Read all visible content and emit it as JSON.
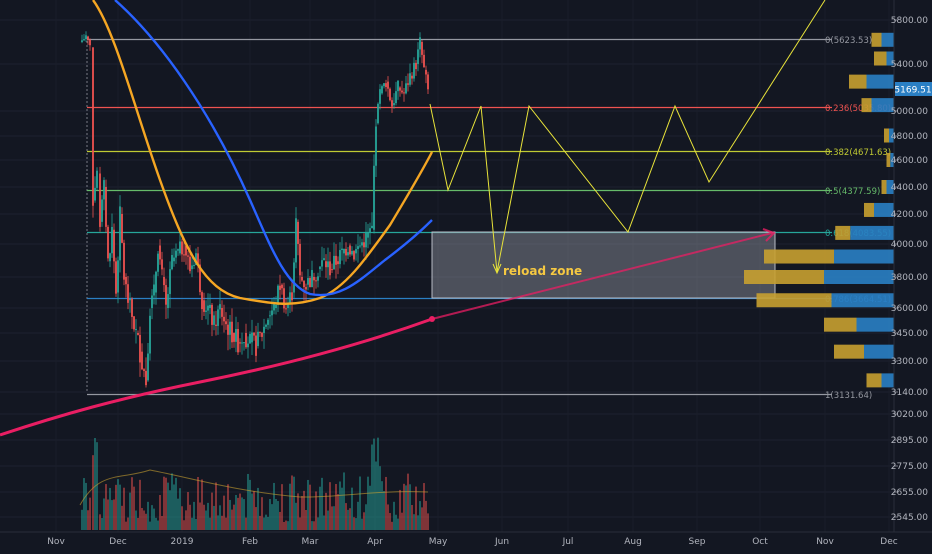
{
  "colors": {
    "background": "#131722",
    "up": "#26a69a",
    "down": "#ef5350",
    "orange_ma": "#f5a623",
    "blue_ma": "#2962ff",
    "pink_ma": "#e91e63",
    "projection": "#e8e33a",
    "vp_up": "#2a7fc4",
    "vp_down": "#c8a030",
    "price_tag": "#2a7fc4"
  },
  "chart_data": {
    "type": "candlestick",
    "symbol_price": "5169.51",
    "y_ticks": [
      "5800.00",
      "5400.00",
      "5000.00",
      "4800.00",
      "4600.00",
      "4400.00",
      "4200.00",
      "4000.00",
      "3800.00",
      "3600.00",
      "3450.00",
      "3300.00",
      "3140.00",
      "3020.00",
      "2895.00",
      "2775.00",
      "2655.00",
      "2545.00"
    ],
    "x_ticks": [
      "Nov",
      "Dec",
      "2019",
      "Feb",
      "Mar",
      "Apr",
      "May",
      "Jun",
      "Jul",
      "Aug",
      "Sep",
      "Oct",
      "Nov",
      "Dec"
    ],
    "fib_levels": [
      {
        "ratio": 0,
        "price": 5623.53,
        "label": "0(5623.53)",
        "color": "#9598a1"
      },
      {
        "ratio": 0.236,
        "price": 5035.8,
        "label": "0.236(5035.80)",
        "color": "#ef5350"
      },
      {
        "ratio": 0.382,
        "price": 4671.63,
        "label": "0.382(4671.63)",
        "color": "#c0ca33"
      },
      {
        "ratio": 0.5,
        "price": 4377.59,
        "label": "0.5(4377.59)",
        "color": "#66bb6a"
      },
      {
        "ratio": 0.618,
        "price": 4083.55,
        "label": "0.618(4083.55)",
        "color": "#26a69a"
      },
      {
        "ratio": 0.786,
        "price": 3664.51,
        "label": "0.786(3664.51)",
        "color": "#2a7fc4"
      },
      {
        "ratio": 1,
        "price": 3131.64,
        "label": "1(3131.64)",
        "color": "#9598a1"
      }
    ],
    "annotations": [
      {
        "text": "reload zone",
        "price_top": 4083.55,
        "price_bottom": 3664.51
      }
    ],
    "volume_profile": [
      {
        "price": 5620,
        "up": 0.1,
        "down": 0.08
      },
      {
        "price": 5450,
        "up": 0.06,
        "down": 0.1
      },
      {
        "price": 5250,
        "up": 0.22,
        "down": 0.14
      },
      {
        "price": 5050,
        "up": 0.18,
        "down": 0.08
      },
      {
        "price": 4800,
        "up": 0.04,
        "down": 0.04
      },
      {
        "price": 4600,
        "up": 0.03,
        "down": 0.03
      },
      {
        "price": 4400,
        "up": 0.06,
        "down": 0.04
      },
      {
        "price": 4230,
        "up": 0.16,
        "down": 0.08
      },
      {
        "price": 4080,
        "up": 0.35,
        "down": 0.12
      },
      {
        "price": 3930,
        "up": 0.48,
        "down": 0.56
      },
      {
        "price": 3800,
        "up": 0.56,
        "down": 0.64
      },
      {
        "price": 3650,
        "up": 0.5,
        "down": 0.6
      },
      {
        "price": 3500,
        "up": 0.3,
        "down": 0.26
      },
      {
        "price": 3350,
        "up": 0.24,
        "down": 0.24
      },
      {
        "price": 3200,
        "up": 0.1,
        "down": 0.12
      }
    ]
  }
}
